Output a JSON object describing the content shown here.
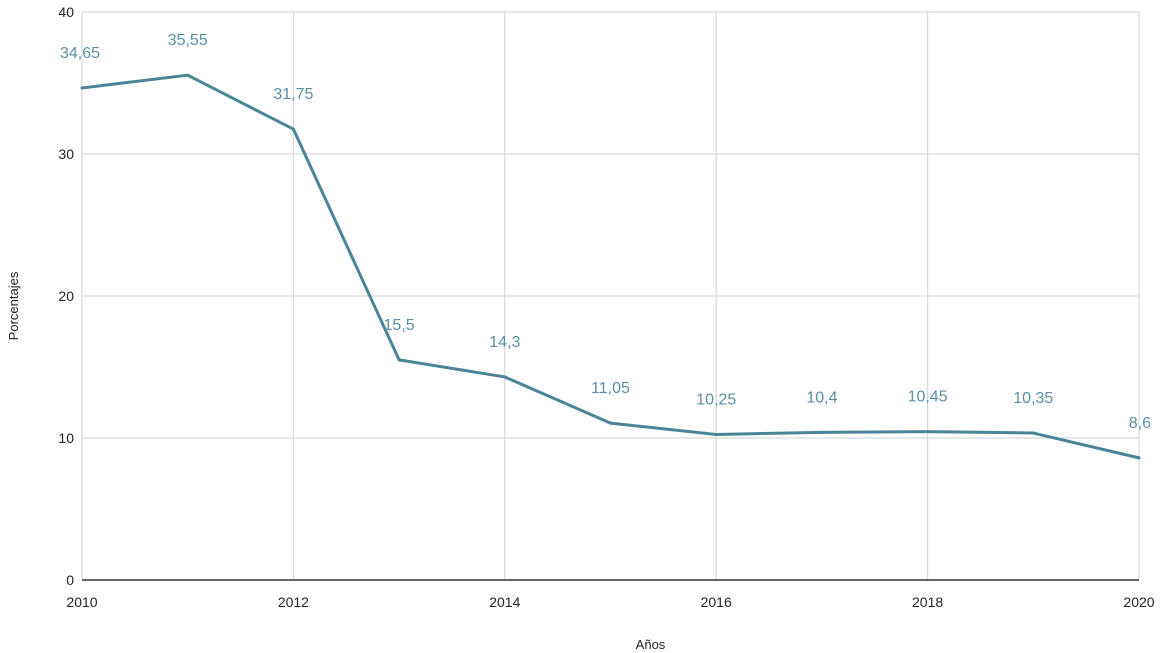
{
  "chart_data": {
    "type": "line",
    "title": "",
    "xlabel": "Años",
    "ylabel": "Porcentajes",
    "x": [
      2010,
      2011,
      2012,
      2013,
      2014,
      2015,
      2016,
      2017,
      2018,
      2019,
      2020
    ],
    "x_ticks": [
      "2010",
      "2012",
      "2014",
      "2016",
      "2018",
      "2020"
    ],
    "y_ticks": [
      "0",
      "10",
      "20",
      "30",
      "40"
    ],
    "xlim": [
      2010,
      2020
    ],
    "ylim": [
      0,
      40
    ],
    "grid": true,
    "legend": "none",
    "series": [
      {
        "values": [
          34.65,
          35.55,
          31.75,
          15.5,
          14.3,
          11.05,
          10.25,
          10.4,
          10.45,
          10.35,
          8.6
        ],
        "labels": [
          "34,65",
          "35,55",
          "31,75",
          "15,5",
          "14,3",
          "11,05",
          "10,25",
          "10,4",
          "10,45",
          "10,35",
          "8,6"
        ],
        "color": "#4a8499",
        "label_color": "#5a8fa3"
      }
    ]
  }
}
